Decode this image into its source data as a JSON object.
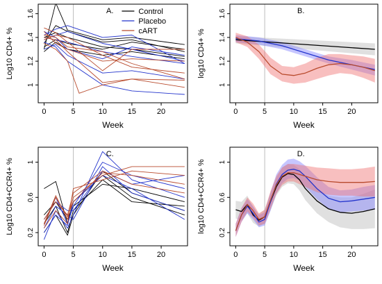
{
  "chart_data": [
    {
      "panel": "A.",
      "type": "line",
      "xlabel": "Week",
      "ylabel": "Log10 CD4+ %",
      "xlim": [
        -1,
        24.5
      ],
      "ylim": [
        0.85,
        1.68
      ],
      "xticks": [
        0,
        5,
        10,
        15,
        20
      ],
      "yticks": [
        1.0,
        1.2,
        1.4,
        1.6
      ],
      "vline": 5,
      "legend": {
        "position": "top-right",
        "entries": [
          {
            "label": "Control",
            "color": "#000000"
          },
          {
            "label": "Placebo",
            "color": "#2233cc"
          },
          {
            "label": "cART",
            "color": "#b84a2c"
          }
        ]
      },
      "series": [
        {
          "group": "Control",
          "color": "#000000",
          "x": [
            0,
            2,
            4,
            10,
            15,
            24
          ],
          "y": [
            1.3,
            1.69,
            1.46,
            1.38,
            1.4,
            1.34
          ]
        },
        {
          "group": "Control",
          "color": "#000000",
          "x": [
            0,
            2,
            4,
            10,
            15,
            24
          ],
          "y": [
            1.35,
            1.5,
            1.45,
            1.36,
            1.38,
            1.28
          ]
        },
        {
          "group": "Control",
          "color": "#000000",
          "x": [
            0,
            2,
            4,
            10,
            15,
            24
          ],
          "y": [
            1.4,
            1.44,
            1.4,
            1.32,
            1.3,
            1.24
          ]
        },
        {
          "group": "Control",
          "color": "#000000",
          "x": [
            0,
            2,
            4,
            10,
            15,
            24
          ],
          "y": [
            1.32,
            1.38,
            1.35,
            1.3,
            1.36,
            1.3
          ]
        },
        {
          "group": "Control",
          "color": "#000000",
          "x": [
            0,
            2,
            4,
            10,
            15,
            24
          ],
          "y": [
            1.28,
            1.36,
            1.3,
            1.25,
            1.28,
            1.22
          ]
        },
        {
          "group": "Placebo",
          "color": "#2233cc",
          "x": [
            0,
            2,
            4,
            10,
            15,
            24
          ],
          "y": [
            1.42,
            1.47,
            1.5,
            1.4,
            1.42,
            1.18
          ]
        },
        {
          "group": "Placebo",
          "color": "#2233cc",
          "x": [
            0,
            2,
            4,
            10,
            15,
            24
          ],
          "y": [
            1.38,
            1.42,
            1.45,
            1.35,
            1.3,
            1.2
          ]
        },
        {
          "group": "Placebo",
          "color": "#2233cc",
          "x": [
            0,
            2,
            4,
            10,
            15,
            24
          ],
          "y": [
            1.45,
            1.4,
            1.3,
            1.22,
            1.32,
            1.25
          ]
        },
        {
          "group": "Placebo",
          "color": "#2233cc",
          "x": [
            0,
            2,
            4,
            10,
            15,
            24
          ],
          "y": [
            1.3,
            1.34,
            1.25,
            1.1,
            1.12,
            1.05
          ]
        },
        {
          "group": "Placebo",
          "color": "#2233cc",
          "x": [
            0,
            2,
            4,
            10,
            15,
            24
          ],
          "y": [
            1.36,
            1.32,
            1.2,
            1.0,
            0.95,
            0.92
          ]
        },
        {
          "group": "Placebo",
          "color": "#2233cc",
          "x": [
            0,
            2,
            4,
            10,
            15,
            24
          ],
          "y": [
            1.4,
            1.38,
            1.36,
            1.28,
            1.24,
            1.18
          ]
        },
        {
          "group": "cART",
          "color": "#b84a2c",
          "x": [
            0,
            2,
            4,
            10,
            15,
            24
          ],
          "y": [
            1.45,
            1.35,
            1.3,
            1.2,
            1.22,
            1.2
          ]
        },
        {
          "group": "cART",
          "color": "#b84a2c",
          "x": [
            0,
            2,
            4,
            10,
            15,
            24
          ],
          "y": [
            1.4,
            1.38,
            1.28,
            1.02,
            1.05,
            1.04
          ]
        },
        {
          "group": "cART",
          "color": "#b84a2c",
          "x": [
            0,
            2,
            4,
            10,
            15,
            24
          ],
          "y": [
            1.38,
            1.42,
            1.4,
            1.25,
            1.15,
            1.1
          ]
        },
        {
          "group": "cART",
          "color": "#b84a2c",
          "x": [
            0,
            2,
            4,
            6,
            10,
            15,
            24
          ],
          "y": [
            1.35,
            1.3,
            1.2,
            0.93,
            1.0,
            1.05,
            0.98
          ]
        },
        {
          "group": "cART",
          "color": "#b84a2c",
          "x": [
            0,
            2,
            4,
            10,
            15,
            24
          ],
          "y": [
            1.48,
            1.44,
            1.36,
            1.12,
            1.3,
            1.3
          ]
        },
        {
          "group": "cART",
          "color": "#b84a2c",
          "x": [
            0,
            2,
            4,
            10,
            15,
            24
          ],
          "y": [
            1.42,
            1.4,
            1.32,
            1.28,
            1.18,
            1.05
          ]
        }
      ]
    },
    {
      "panel": "B.",
      "type": "line",
      "xlabel": "Week",
      "ylabel": "log10 CD4+ %",
      "xlim": [
        -1,
        24.5
      ],
      "ylim": [
        0.85,
        1.68
      ],
      "xticks": [
        0,
        5,
        10,
        15,
        20
      ],
      "yticks": [
        1.0,
        1.2,
        1.4,
        1.6
      ],
      "vline": 5,
      "series": [
        {
          "group": "Control",
          "color": "#000000",
          "band": "#bbbbbb",
          "x": [
            0,
            24
          ],
          "y": [
            1.38,
            1.3
          ],
          "lo": [
            1.35,
            1.25
          ],
          "hi": [
            1.41,
            1.35
          ]
        },
        {
          "group": "Placebo",
          "color": "#2233cc",
          "band": "#8080ff",
          "x": [
            0,
            4,
            8,
            12,
            16,
            20,
            24
          ],
          "y": [
            1.39,
            1.37,
            1.33,
            1.27,
            1.21,
            1.17,
            1.13
          ],
          "lo": [
            1.36,
            1.34,
            1.3,
            1.24,
            1.18,
            1.13,
            1.08
          ],
          "hi": [
            1.42,
            1.4,
            1.36,
            1.3,
            1.24,
            1.21,
            1.17
          ]
        },
        {
          "group": "cART",
          "color": "#b84a2c",
          "band": "#f07070",
          "x": [
            0,
            2,
            4,
            6,
            8,
            10,
            12,
            14,
            16,
            18,
            20,
            22,
            24
          ],
          "y": [
            1.4,
            1.36,
            1.28,
            1.16,
            1.09,
            1.08,
            1.1,
            1.14,
            1.17,
            1.18,
            1.17,
            1.15,
            1.12
          ],
          "lo": [
            1.36,
            1.32,
            1.22,
            1.09,
            1.03,
            1.01,
            1.02,
            1.05,
            1.08,
            1.1,
            1.09,
            1.06,
            1.02
          ],
          "hi": [
            1.44,
            1.41,
            1.34,
            1.23,
            1.16,
            1.15,
            1.18,
            1.23,
            1.26,
            1.26,
            1.25,
            1.24,
            1.22
          ]
        }
      ]
    },
    {
      "panel": "C.",
      "type": "line",
      "xlabel": "Week",
      "ylabel": "Log10 CD4+CCR4+ %",
      "xlim": [
        -1,
        24.5
      ],
      "ylim": [
        0.05,
        1.17
      ],
      "xticks": [
        0,
        5,
        10,
        15,
        20
      ],
      "yticks": [
        0.2,
        0.6,
        1.0
      ],
      "vline": 5,
      "series": [
        {
          "group": "Control",
          "color": "#000000",
          "x": [
            0,
            2,
            4,
            5,
            10,
            15,
            24
          ],
          "y": [
            0.7,
            0.78,
            0.3,
            0.55,
            0.85,
            0.6,
            0.4
          ]
        },
        {
          "group": "Control",
          "color": "#000000",
          "x": [
            0,
            2,
            4,
            5,
            10,
            15,
            24
          ],
          "y": [
            0.3,
            0.5,
            0.2,
            0.45,
            0.8,
            0.55,
            0.5
          ]
        },
        {
          "group": "Control",
          "color": "#000000",
          "x": [
            0,
            2,
            4,
            5,
            10,
            15,
            24
          ],
          "y": [
            0.2,
            0.4,
            0.17,
            0.4,
            0.9,
            0.65,
            0.45
          ]
        },
        {
          "group": "Control",
          "color": "#000000",
          "x": [
            0,
            2,
            4,
            5,
            10,
            15,
            24
          ],
          "y": [
            0.4,
            0.55,
            0.35,
            0.5,
            0.75,
            0.7,
            0.55
          ]
        },
        {
          "group": "Placebo",
          "color": "#2233cc",
          "x": [
            0,
            2,
            4,
            5,
            10,
            15,
            24
          ],
          "y": [
            0.12,
            0.45,
            0.25,
            0.4,
            1.12,
            0.8,
            0.6
          ]
        },
        {
          "group": "Placebo",
          "color": "#2233cc",
          "x": [
            0,
            2,
            4,
            5,
            10,
            15,
            24
          ],
          "y": [
            0.3,
            0.6,
            0.3,
            0.5,
            1.0,
            0.85,
            0.7
          ]
        },
        {
          "group": "Placebo",
          "color": "#2233cc",
          "x": [
            0,
            2,
            4,
            5,
            10,
            15,
            24
          ],
          "y": [
            0.25,
            0.5,
            0.4,
            0.35,
            0.95,
            0.65,
            0.45
          ]
        },
        {
          "group": "Placebo",
          "color": "#2233cc",
          "x": [
            0,
            2,
            4,
            5,
            10,
            15,
            24
          ],
          "y": [
            0.35,
            0.55,
            0.45,
            0.45,
            0.9,
            0.75,
            0.85
          ]
        },
        {
          "group": "Placebo",
          "color": "#2233cc",
          "x": [
            0,
            2,
            4,
            5,
            10,
            15,
            24
          ],
          "y": [
            0.2,
            0.4,
            0.28,
            0.55,
            0.85,
            0.7,
            0.35
          ]
        },
        {
          "group": "cART",
          "color": "#b84a2c",
          "x": [
            0,
            2,
            4,
            5,
            10,
            15,
            24
          ],
          "y": [
            0.3,
            0.62,
            0.35,
            0.6,
            0.85,
            0.95,
            0.95
          ]
        },
        {
          "group": "cART",
          "color": "#b84a2c",
          "x": [
            0,
            2,
            4,
            5,
            10,
            15,
            24
          ],
          "y": [
            0.25,
            0.45,
            0.3,
            0.7,
            0.8,
            0.9,
            0.85
          ]
        },
        {
          "group": "cART",
          "color": "#b84a2c",
          "x": [
            0,
            2,
            4,
            5,
            10,
            15,
            24
          ],
          "y": [
            0.35,
            0.55,
            0.4,
            0.65,
            0.9,
            0.75,
            0.65
          ]
        },
        {
          "group": "cART",
          "color": "#b84a2c",
          "x": [
            0,
            2,
            4,
            5,
            10,
            15,
            24
          ],
          "y": [
            0.28,
            0.6,
            0.38,
            0.55,
            0.88,
            0.85,
            0.75
          ]
        }
      ]
    },
    {
      "panel": "D.",
      "type": "line",
      "xlabel": "Week",
      "ylabel": "log10 CD4+CCR4+ %",
      "xlim": [
        -1,
        24.5
      ],
      "ylim": [
        0.05,
        1.17
      ],
      "xticks": [
        0,
        5,
        10,
        15,
        20
      ],
      "yticks": [
        0.2,
        0.6,
        1.0
      ],
      "vline": 5,
      "series": [
        {
          "group": "Control",
          "color": "#000000",
          "band": "#bbbbbb",
          "x": [
            0,
            1,
            2,
            3,
            4,
            5,
            6,
            7,
            8,
            9,
            10,
            11,
            12,
            14,
            16,
            18,
            20,
            22,
            24
          ],
          "y": [
            0.46,
            0.44,
            0.52,
            0.4,
            0.34,
            0.38,
            0.55,
            0.72,
            0.83,
            0.87,
            0.86,
            0.8,
            0.7,
            0.56,
            0.47,
            0.43,
            0.42,
            0.44,
            0.47
          ],
          "lo": [
            0.36,
            0.34,
            0.42,
            0.31,
            0.27,
            0.3,
            0.45,
            0.62,
            0.72,
            0.76,
            0.75,
            0.68,
            0.57,
            0.42,
            0.32,
            0.26,
            0.24,
            0.24,
            0.25
          ],
          "hi": [
            0.56,
            0.55,
            0.62,
            0.49,
            0.41,
            0.46,
            0.65,
            0.82,
            0.94,
            0.98,
            0.97,
            0.92,
            0.83,
            0.7,
            0.62,
            0.6,
            0.6,
            0.64,
            0.69
          ]
        },
        {
          "group": "Placebo",
          "color": "#2233cc",
          "band": "#8080ff",
          "x": [
            0,
            1,
            2,
            3,
            4,
            5,
            6,
            7,
            8,
            9,
            10,
            11,
            12,
            14,
            16,
            18,
            20,
            22,
            24
          ],
          "y": [
            0.22,
            0.4,
            0.5,
            0.42,
            0.32,
            0.35,
            0.55,
            0.75,
            0.86,
            0.91,
            0.92,
            0.9,
            0.84,
            0.7,
            0.59,
            0.55,
            0.56,
            0.58,
            0.6
          ],
          "lo": [
            0.15,
            0.32,
            0.42,
            0.35,
            0.26,
            0.28,
            0.45,
            0.64,
            0.76,
            0.81,
            0.82,
            0.79,
            0.72,
            0.58,
            0.47,
            0.43,
            0.44,
            0.45,
            0.46
          ],
          "hi": [
            0.3,
            0.48,
            0.58,
            0.5,
            0.4,
            0.43,
            0.66,
            0.86,
            0.97,
            1.03,
            1.04,
            1.01,
            0.96,
            0.83,
            0.72,
            0.68,
            0.69,
            0.72,
            0.74
          ]
        },
        {
          "group": "cART",
          "color": "#b84a2c",
          "band": "#f07070",
          "x": [
            0,
            1,
            2,
            3,
            4,
            5,
            6,
            7,
            8,
            9,
            10,
            11,
            12,
            14,
            16,
            18,
            20,
            22,
            24
          ],
          "y": [
            0.22,
            0.4,
            0.52,
            0.45,
            0.35,
            0.38,
            0.57,
            0.74,
            0.84,
            0.88,
            0.88,
            0.86,
            0.84,
            0.8,
            0.78,
            0.77,
            0.77,
            0.77,
            0.78
          ],
          "lo": [
            0.15,
            0.32,
            0.44,
            0.37,
            0.28,
            0.3,
            0.47,
            0.64,
            0.74,
            0.78,
            0.78,
            0.75,
            0.72,
            0.66,
            0.63,
            0.62,
            0.62,
            0.61,
            0.61
          ],
          "hi": [
            0.3,
            0.48,
            0.6,
            0.53,
            0.42,
            0.46,
            0.67,
            0.84,
            0.94,
            0.98,
            0.98,
            0.97,
            0.96,
            0.94,
            0.93,
            0.92,
            0.92,
            0.93,
            0.95
          ]
        }
      ]
    }
  ]
}
